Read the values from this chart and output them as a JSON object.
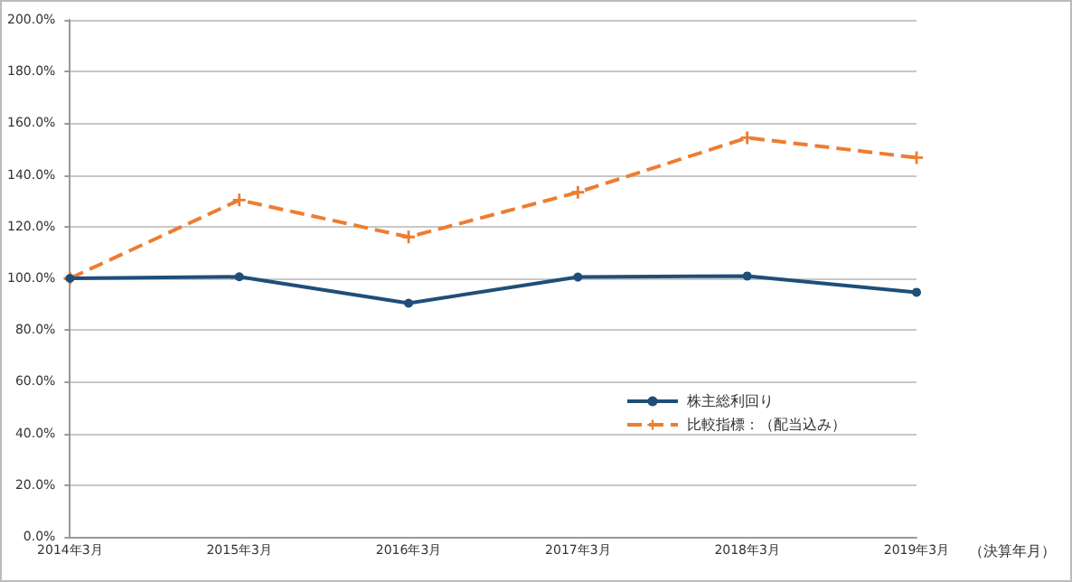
{
  "chart_data": {
    "type": "line",
    "categories": [
      "2014年3月",
      "2015年3月",
      "2016年3月",
      "2017年3月",
      "2018年3月",
      "2019年3月"
    ],
    "series": [
      {
        "name": "株主総利回り",
        "color": "#1f4e79",
        "values": [
          100,
          100.6,
          90.4,
          100.5,
          100.9,
          94.6
        ],
        "marker": "circle",
        "line_style": "solid"
      },
      {
        "name": "比較指標：（配当込み）",
        "color": "#ed7d31",
        "values": [
          100,
          130.3,
          116.0,
          133.3,
          154.4,
          146.7
        ],
        "marker": "cross",
        "line_style": "dashed"
      }
    ],
    "ylim": [
      0,
      200
    ],
    "yticks": [
      {
        "value": 0,
        "label": "0.0%"
      },
      {
        "value": 20,
        "label": "20.0%"
      },
      {
        "value": 40,
        "label": "40.0%"
      },
      {
        "value": 60,
        "label": "60.0%"
      },
      {
        "value": 80,
        "label": "80.0%"
      },
      {
        "value": 100,
        "label": "100.0%"
      },
      {
        "value": 120,
        "label": "120.0%"
      },
      {
        "value": 140,
        "label": "140.0%"
      },
      {
        "value": 160,
        "label": "160.0%"
      },
      {
        "value": 180,
        "label": "180.0%"
      },
      {
        "value": 200,
        "label": "200.0%"
      }
    ],
    "grid": "y",
    "legend": "bottom right",
    "annotations": [
      "（決算年月）"
    ]
  }
}
